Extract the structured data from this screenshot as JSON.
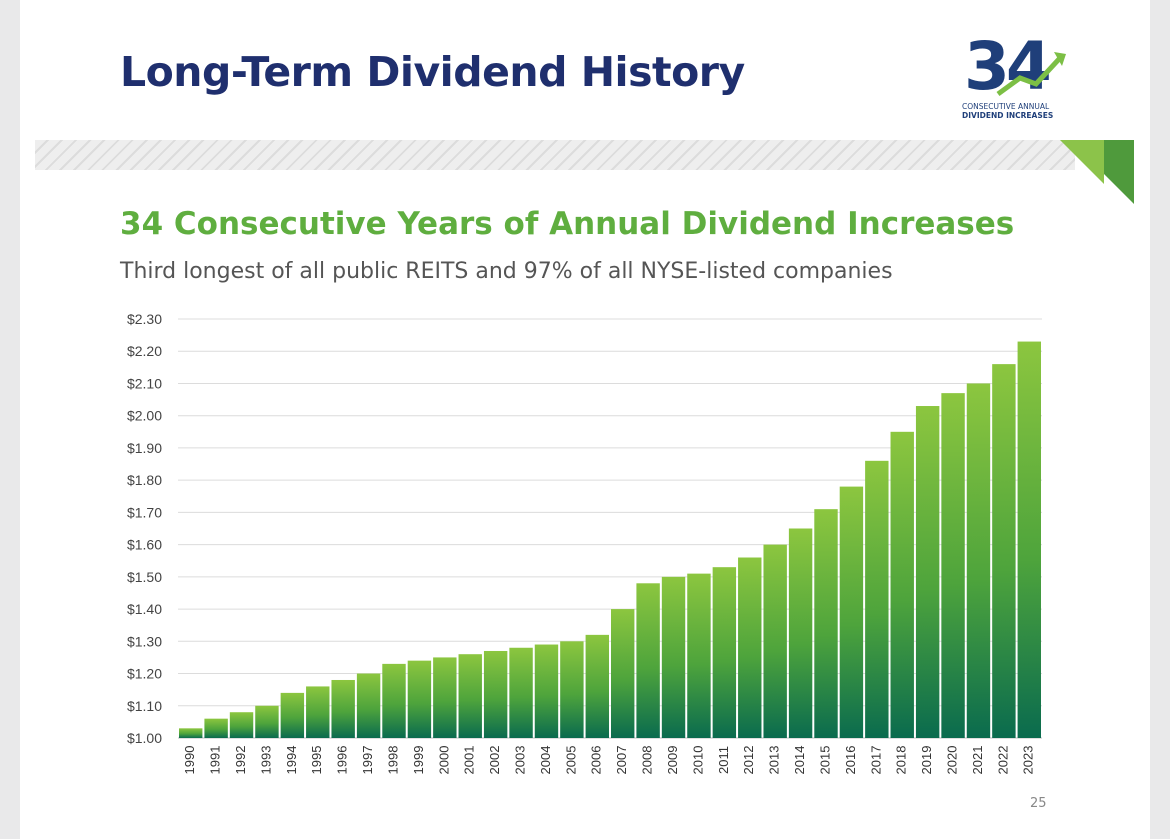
{
  "slide": {
    "title": "Long-Term Dividend History",
    "subtitle": "34 Consecutive Years of Annual Dividend Increases",
    "description": "Third longest of all public REITS and 97% of all NYSE-listed companies",
    "page_number": "25",
    "logo": {
      "number": "34",
      "line1": "CONSECUTIVE ANNUAL",
      "line2": "DIVIDEND INCREASES"
    }
  },
  "colors": {
    "title": "#1f2f6e",
    "accent_green": "#5fae3f",
    "bar_top": "#8cc63f",
    "bar_bottom": "#0a6b4e"
  },
  "chart_data": {
    "type": "bar",
    "categories": [
      "1990",
      "1991",
      "1992",
      "1993",
      "1994",
      "1995",
      "1996",
      "1997",
      "1998",
      "1999",
      "2000",
      "2001",
      "2002",
      "2003",
      "2004",
      "2005",
      "2006",
      "2007",
      "2008",
      "2009",
      "2010",
      "2011",
      "2012",
      "2013",
      "2014",
      "2015",
      "2016",
      "2017",
      "2018",
      "2019",
      "2020",
      "2021",
      "2022",
      "2023"
    ],
    "values": [
      1.03,
      1.06,
      1.08,
      1.1,
      1.14,
      1.16,
      1.18,
      1.2,
      1.23,
      1.24,
      1.25,
      1.26,
      1.27,
      1.28,
      1.29,
      1.3,
      1.32,
      1.4,
      1.48,
      1.5,
      1.51,
      1.53,
      1.56,
      1.6,
      1.65,
      1.71,
      1.78,
      1.86,
      1.95,
      2.03,
      2.07,
      2.1,
      2.16,
      2.23
    ],
    "ylim": [
      1.0,
      2.3
    ],
    "yticks": [
      "$1.00",
      "$1.10",
      "$1.20",
      "$1.30",
      "$1.40",
      "$1.50",
      "$1.60",
      "$1.70",
      "$1.80",
      "$1.90",
      "$2.00",
      "$2.10",
      "$2.20",
      "$2.30"
    ],
    "grid": true,
    "legend": "none"
  }
}
